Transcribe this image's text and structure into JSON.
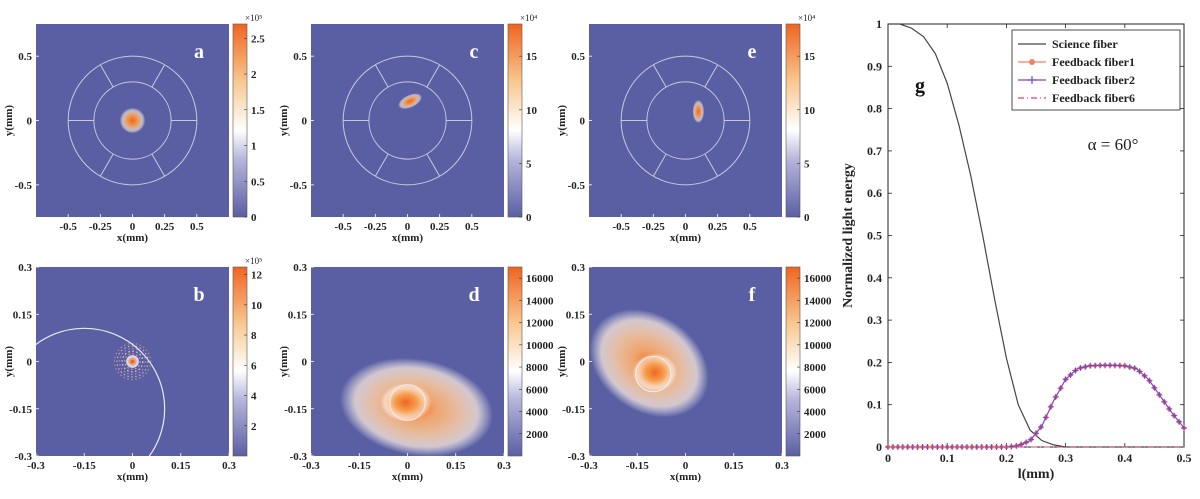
{
  "colors": {
    "background": "#5a5fa3",
    "hot": "#f06420",
    "mid": "#f6c6a0",
    "guide": "#c8c8dc"
  },
  "chart_data": [
    {
      "type": "heatmap",
      "panel": "a",
      "xlabel": "x(mm)",
      "ylabel": "y(mm)",
      "x_ticks": [
        "-0.5",
        "-0.25",
        "0",
        "0.25",
        "0.5"
      ],
      "y_ticks": [
        "0.5",
        "0",
        "-0.5"
      ],
      "xlim": [
        -0.75,
        0.75
      ],
      "ylim": [
        -0.75,
        0.75
      ],
      "colorbar": {
        "ticks": [
          "0",
          "0.5",
          "1",
          "1.5",
          "2",
          "2.5"
        ],
        "max": 2.7,
        "exponent": "×10⁵"
      },
      "spot": {
        "x": 0.0,
        "y": 0.0,
        "peak": 2.7
      }
    },
    {
      "type": "heatmap",
      "panel": "b",
      "xlabel": "x(mm)",
      "ylabel": "y(mm)",
      "x_ticks": [
        "-0.3",
        "-0.15",
        "0",
        "0.15",
        "0.3"
      ],
      "y_ticks": [
        "0.3",
        "0.15",
        "0",
        "-0.15",
        "-0.3"
      ],
      "xlim": [
        -0.3,
        0.3
      ],
      "ylim": [
        -0.3,
        0.3
      ],
      "colorbar": {
        "ticks": [
          "2",
          "4",
          "6",
          "8",
          "10",
          "12"
        ],
        "max": 12.5,
        "exponent": "×10⁵"
      },
      "spot": {
        "x": 0.0,
        "y": 0.0,
        "peak": 12.5
      }
    },
    {
      "type": "heatmap",
      "panel": "c",
      "xlabel": "x(mm)",
      "ylabel": "y(mm)",
      "x_ticks": [
        "-0.5",
        "-0.25",
        "0",
        "0.25",
        "0.5"
      ],
      "y_ticks": [
        "0.5",
        "0",
        "-0.5"
      ],
      "xlim": [
        -0.75,
        0.75
      ],
      "ylim": [
        -0.75,
        0.75
      ],
      "colorbar": {
        "ticks": [
          "0",
          "5",
          "10",
          "15"
        ],
        "max": 18,
        "exponent": "×10⁴"
      },
      "spot": {
        "x": 0.02,
        "y": 0.15,
        "peak": 18
      }
    },
    {
      "type": "heatmap",
      "panel": "d",
      "xlabel": "x(mm)",
      "ylabel": "y(mm)",
      "x_ticks": [
        "-0.3",
        "-0.15",
        "0",
        "0.15",
        "0.3"
      ],
      "y_ticks": [
        "0.3",
        "0.15",
        "0",
        "-0.15",
        "-0.3"
      ],
      "xlim": [
        -0.3,
        0.3
      ],
      "ylim": [
        -0.3,
        0.3
      ],
      "colorbar": {
        "ticks": [
          "2000",
          "4000",
          "6000",
          "8000",
          "10000",
          "12000",
          "14000",
          "16000"
        ],
        "max": 17000
      },
      "spot": {
        "x": 0.0,
        "y": -0.13,
        "peak": 17000
      }
    },
    {
      "type": "heatmap",
      "panel": "e",
      "xlabel": "x(mm)",
      "ylabel": "y(mm)",
      "x_ticks": [
        "-0.5",
        "-0.25",
        "0",
        "0.25",
        "0.5"
      ],
      "y_ticks": [
        "0.5",
        "0",
        "-0.5"
      ],
      "xlim": [
        -0.75,
        0.75
      ],
      "ylim": [
        -0.75,
        0.75
      ],
      "colorbar": {
        "ticks": [
          "0",
          "5",
          "10",
          "15"
        ],
        "max": 18,
        "exponent": "×10⁴"
      },
      "spot": {
        "x": 0.1,
        "y": 0.07,
        "peak": 18
      }
    },
    {
      "type": "heatmap",
      "panel": "f",
      "xlabel": "x(mm)",
      "ylabel": "y(mm)",
      "x_ticks": [
        "-0.3",
        "-0.15",
        "0",
        "0.15",
        "0.3"
      ],
      "y_ticks": [
        "0.3",
        "0.15",
        "0",
        "-0.15",
        "-0.3"
      ],
      "xlim": [
        -0.3,
        0.3
      ],
      "ylim": [
        -0.3,
        0.3
      ],
      "colorbar": {
        "ticks": [
          "2000",
          "4000",
          "6000",
          "8000",
          "10000",
          "12000",
          "14000",
          "16000"
        ],
        "max": 17000
      },
      "spot": {
        "x": -0.1,
        "y": -0.04,
        "peak": 17000
      }
    },
    {
      "type": "line",
      "panel": "g",
      "xlabel": "l(mm)",
      "ylabel": "Normalized light energy",
      "xlim": [
        0,
        0.5
      ],
      "ylim": [
        0,
        1
      ],
      "x_ticks": [
        "0",
        "0.1",
        "0.2",
        "0.3",
        "0.4",
        "0.5"
      ],
      "y_ticks": [
        "0",
        "0.1",
        "0.2",
        "0.3",
        "0.4",
        "0.5",
        "0.6",
        "0.7",
        "0.8",
        "0.9",
        "1"
      ],
      "annotation": "α = 60°",
      "legend_position": "top-right",
      "series": [
        {
          "name": "Science fiber",
          "color": "#444444",
          "x": [
            0,
            0.02,
            0.04,
            0.06,
            0.08,
            0.1,
            0.12,
            0.14,
            0.16,
            0.18,
            0.2,
            0.22,
            0.24,
            0.26,
            0.28,
            0.3,
            0.35,
            0.4,
            0.45,
            0.5
          ],
          "y": [
            1,
            1,
            0.99,
            0.97,
            0.93,
            0.86,
            0.76,
            0.64,
            0.5,
            0.35,
            0.21,
            0.1,
            0.04,
            0.015,
            0.005,
            0.0,
            0.0,
            0.0,
            0.0,
            0.0
          ]
        },
        {
          "name": "Feedback fiber1",
          "color": "#f08060",
          "x": [
            0,
            0.05,
            0.1,
            0.15,
            0.2,
            0.22,
            0.24,
            0.26,
            0.28,
            0.3,
            0.32,
            0.34,
            0.36,
            0.38,
            0.4,
            0.42,
            0.44,
            0.46,
            0.48,
            0.5
          ],
          "y": [
            0,
            0,
            0,
            0,
            0,
            0.003,
            0.015,
            0.05,
            0.11,
            0.16,
            0.185,
            0.192,
            0.193,
            0.193,
            0.192,
            0.185,
            0.16,
            0.12,
            0.08,
            0.045
          ]
        },
        {
          "name": "Feedback fiber2",
          "color": "#8040c0",
          "x": [
            0,
            0.05,
            0.1,
            0.15,
            0.2,
            0.22,
            0.24,
            0.26,
            0.28,
            0.3,
            0.32,
            0.34,
            0.36,
            0.38,
            0.4,
            0.42,
            0.44,
            0.46,
            0.48,
            0.5
          ],
          "y": [
            0,
            0,
            0,
            0,
            0,
            0.003,
            0.015,
            0.05,
            0.11,
            0.16,
            0.185,
            0.192,
            0.193,
            0.193,
            0.192,
            0.185,
            0.16,
            0.12,
            0.08,
            0.045
          ]
        },
        {
          "name": "Feedback fiber6",
          "color": "#e04070",
          "x": [
            0,
            0.1,
            0.2,
            0.3,
            0.4,
            0.5
          ],
          "y": [
            0,
            0,
            0,
            0,
            0,
            0
          ]
        }
      ]
    }
  ]
}
